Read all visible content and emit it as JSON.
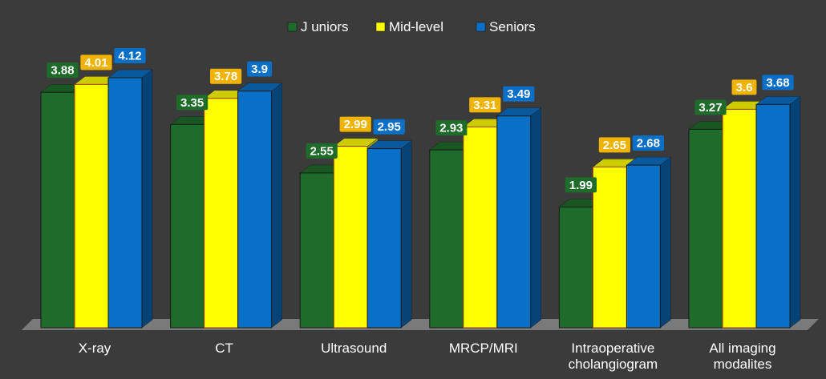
{
  "chart_data": {
    "type": "bar",
    "categories": [
      "X-ray",
      "CT",
      "Ultrasound",
      "MRCP/MRI",
      "Intraoperative cholangiogram",
      "All imaging modalites"
    ],
    "category_lines": [
      [
        "X-ray"
      ],
      [
        "CT"
      ],
      [
        "Ultrasound"
      ],
      [
        "MRCP/MRI"
      ],
      [
        "Intraoperative",
        "cholangiogram"
      ],
      [
        "All imaging",
        "modalites"
      ]
    ],
    "series": [
      {
        "name": "J uniors",
        "color": "#1e6b2a",
        "label_bg": "#1e6b2a",
        "label_color": "#ffffff",
        "values": [
          3.88,
          3.35,
          2.55,
          2.93,
          1.99,
          3.27
        ],
        "labels": [
          "3.88",
          "3.35",
          "2.55",
          "2.93",
          "1.99",
          "3.27"
        ]
      },
      {
        "name": "Mid-level",
        "color": "#ffff00",
        "label_bg": "#f0b400",
        "label_color": "#ffffff",
        "values": [
          4.01,
          3.78,
          2.99,
          3.31,
          2.65,
          3.6
        ],
        "labels": [
          "4.01",
          "3.78",
          "2.99",
          "3.31",
          "2.65",
          "3.6"
        ]
      },
      {
        "name": "Seniors",
        "color": "#0a6fc6",
        "label_bg": "#0a6fc6",
        "label_color": "#ffffff",
        "values": [
          4.12,
          3.9,
          2.95,
          3.49,
          2.68,
          3.68
        ],
        "labels": [
          "4.12",
          "3.9",
          "2.95",
          "3.49",
          "2.68",
          "3.68"
        ]
      }
    ],
    "title": "",
    "xlabel": "",
    "ylabel": "",
    "ylim": [
      0,
      4.12
    ],
    "grid": false,
    "legend_position": "top",
    "background": "#3b3b3b",
    "floor_color": "#7a7a7a",
    "text_color": "#ffffff"
  }
}
